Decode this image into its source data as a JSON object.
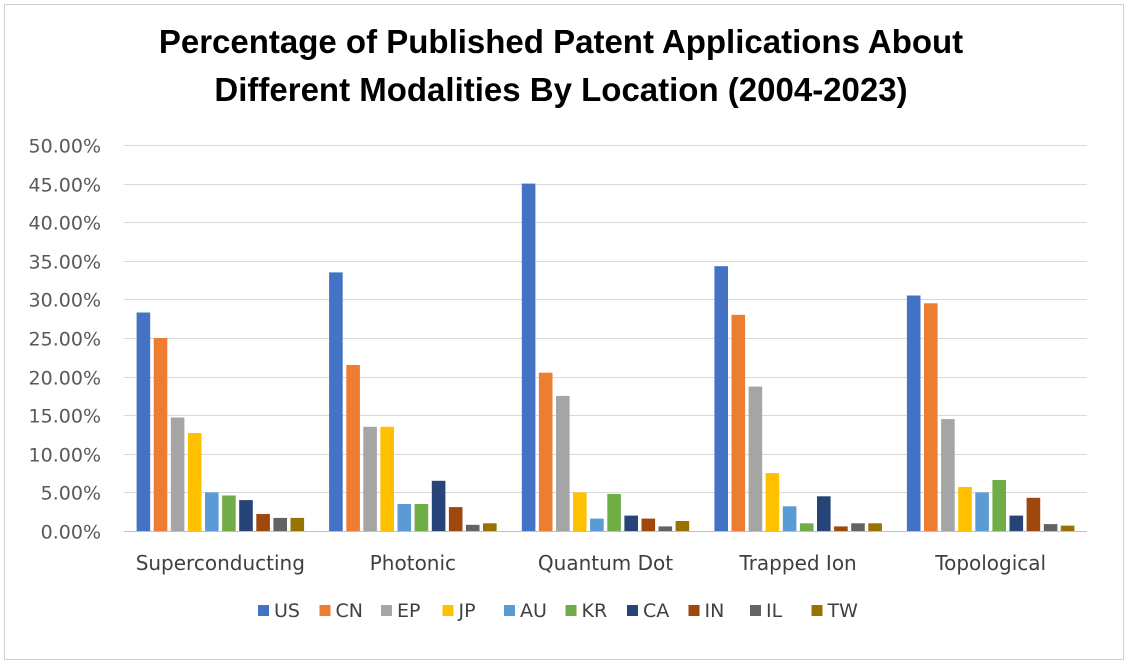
{
  "chart_data": {
    "type": "bar",
    "title_line1": "Percentage of Published Patent Applications About",
    "title_line2": "Different Modalities By Location (2004-2023)",
    "xlabel": "",
    "ylabel": "",
    "ylim": [
      0,
      0.5
    ],
    "y_ticks": [
      "0.00%",
      "5.00%",
      "10.00%",
      "15.00%",
      "20.00%",
      "25.00%",
      "30.00%",
      "35.00%",
      "40.00%",
      "45.00%",
      "50.00%"
    ],
    "grid": true,
    "legend_position": "bottom",
    "categories": [
      "Superconducting",
      "Photonic",
      "Quantum Dot",
      "Trapped Ion",
      "Topological"
    ],
    "series": [
      {
        "name": "US",
        "color": "#4472C4",
        "values": [
          0.283,
          0.335,
          0.45,
          0.343,
          0.305
        ]
      },
      {
        "name": "CN",
        "color": "#ED7D31",
        "values": [
          0.25,
          0.215,
          0.205,
          0.28,
          0.295
        ]
      },
      {
        "name": "EP",
        "color": "#A5A5A5",
        "values": [
          0.147,
          0.135,
          0.175,
          0.187,
          0.145
        ]
      },
      {
        "name": "JP",
        "color": "#FFC000",
        "values": [
          0.127,
          0.135,
          0.05,
          0.075,
          0.057
        ]
      },
      {
        "name": "AU",
        "color": "#5B9BD5",
        "values": [
          0.05,
          0.035,
          0.016,
          0.032,
          0.05
        ]
      },
      {
        "name": "KR",
        "color": "#70AD47",
        "values": [
          0.046,
          0.035,
          0.048,
          0.01,
          0.066
        ]
      },
      {
        "name": "CA",
        "color": "#264478",
        "values": [
          0.04,
          0.065,
          0.02,
          0.045,
          0.02
        ]
      },
      {
        "name": "IN",
        "color": "#9E480E",
        "values": [
          0.022,
          0.031,
          0.016,
          0.006,
          0.043
        ]
      },
      {
        "name": "IL",
        "color": "#636363",
        "values": [
          0.017,
          0.008,
          0.006,
          0.01,
          0.009
        ]
      },
      {
        "name": "TW",
        "color": "#997300",
        "values": [
          0.017,
          0.01,
          0.013,
          0.01,
          0.007
        ]
      }
    ]
  }
}
